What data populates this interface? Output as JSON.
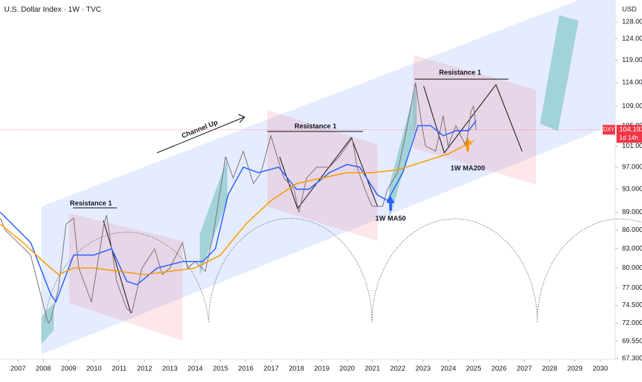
{
  "header": {
    "title": "U.S. Dollar Index · 1W · TVC",
    "currency": "USD"
  },
  "chart_data": {
    "type": "line",
    "log_scale": true,
    "xlim": [
      2006.29,
      2030.59
    ],
    "xticks": [
      2007,
      2008,
      2009,
      2010,
      2011,
      2012,
      2013,
      2014,
      2015,
      2016,
      2017,
      2018,
      2019,
      2020,
      2021,
      2022,
      2023,
      2024,
      2025,
      2026,
      2027,
      2028,
      2029,
      2030
    ],
    "ylim": [
      67.2,
      133.5
    ],
    "yticks": [
      {
        "value": 67.3,
        "label": "67.300"
      },
      {
        "value": 69.55,
        "label": "69.550"
      },
      {
        "value": 72,
        "label": "72.000"
      },
      {
        "value": 74.5,
        "label": "74.500"
      },
      {
        "value": 77,
        "label": "77.000"
      },
      {
        "value": 80,
        "label": "80.000"
      },
      {
        "value": 83,
        "label": "83.000"
      },
      {
        "value": 86,
        "label": "86.000"
      },
      {
        "value": 89,
        "label": "89.000"
      },
      {
        "value": 93,
        "label": "93.000"
      },
      {
        "value": 97,
        "label": "97.000"
      },
      {
        "value": 101,
        "label": "101.000"
      },
      {
        "value": 105,
        "label": "105.000"
      },
      {
        "value": 109,
        "label": "109.000"
      },
      {
        "value": 114,
        "label": "114.000"
      },
      {
        "value": 119,
        "label": "119.000"
      },
      {
        "value": 124,
        "label": "124.000"
      },
      {
        "value": 128,
        "label": "128.000"
      }
    ],
    "series": [
      {
        "color": "#7a6a6a",
        "x": [
          2006.3,
          2006.5,
          2007.0,
          2007.5,
          2007.9,
          2008.2,
          2008.3,
          2008.6,
          2008.9,
          2009.2,
          2009.4,
          2009.9,
          2010.4,
          2010.5,
          2010.9,
          2011.3,
          2011.5,
          2011.9,
          2012.4,
          2012.7,
          2013.0,
          2013.5,
          2013.7,
          2014.0,
          2014.4,
          2014.7,
          2015.0,
          2015.2,
          2015.5,
          2015.9,
          2016.3,
          2016.6,
          2016.99,
          2017.5,
          2017.9,
          2018.1,
          2018.4,
          2018.8,
          2019.3,
          2019.7,
          2020.2,
          2020.4,
          2020.7,
          2020.99,
          2021.4,
          2021.6,
          2021.99,
          2022.3,
          2022.7,
          2022.99,
          2023.1,
          2023.5,
          2023.8,
          2023.99,
          2024.3,
          2024.7,
          2024.9,
          2025.0,
          2025.1
        ],
        "values": [
          88,
          86,
          84,
          82,
          76,
          72,
          72.5,
          77,
          87,
          88,
          80,
          75,
          87,
          88.5,
          78,
          74,
          73.5,
          80,
          83,
          79,
          80,
          84,
          80,
          81,
          79.5,
          85,
          93,
          99,
          95,
          100,
          94,
          96,
          103,
          95,
          93,
          89,
          95,
          97,
          97,
          99,
          102.5,
          97,
          93,
          90,
          90,
          93,
          96,
          103,
          114,
          104,
          101,
          100,
          107,
          101,
          105,
          101,
          108,
          109,
          104.2
        ]
      },
      {
        "color": "#2962ff",
        "x": [
          2006.3,
          2007.5,
          2008.3,
          2008.5,
          2009.2,
          2010.0,
          2010.7,
          2011.3,
          2011.7,
          2012.5,
          2013.5,
          2014.3,
          2014.8,
          2015.3,
          2015.9,
          2016.5,
          2017.3,
          2018.0,
          2018.5,
          2019.3,
          2020.0,
          2020.5,
          2021.2,
          2021.6,
          2022.2,
          2022.8,
          2023.3,
          2023.8,
          2024.3,
          2024.8,
          2025.1
        ],
        "values": [
          89,
          84,
          76,
          75,
          82,
          82,
          83,
          78,
          77.5,
          80,
          81,
          81,
          83,
          92,
          97,
          96,
          97,
          93,
          93,
          96,
          97.5,
          97,
          92,
          91,
          96,
          105,
          105,
          103,
          104,
          104,
          106
        ]
      },
      {
        "color": "#ff9800",
        "x": [
          2006.3,
          2007.2,
          2008.0,
          2008.6,
          2009.2,
          2010.0,
          2011.0,
          2012.0,
          2013.0,
          2014.0,
          2015.0,
          2016.0,
          2017.0,
          2018.0,
          2019.0,
          2020.0,
          2021.0,
          2022.0,
          2023.0,
          2024.0,
          2025.0
        ],
        "values": [
          87,
          84,
          81,
          79,
          80,
          80,
          79.5,
          79,
          79.5,
          80,
          82,
          87,
          91,
          94,
          95,
          96,
          96,
          96.5,
          98,
          99.5,
          102
        ]
      }
    ],
    "annotations": {
      "resistance_1": "Resistance 1",
      "resistance_2": "Resistance 1",
      "resistance_3": "Resistance 1",
      "channel": "Channel Up",
      "ma50": "1W MA50",
      "ma200": "1W MA200"
    },
    "last_price": {
      "symbol": "DXY",
      "value": 104.193,
      "countdown": "1d 14h",
      "color": "#f23645"
    }
  }
}
